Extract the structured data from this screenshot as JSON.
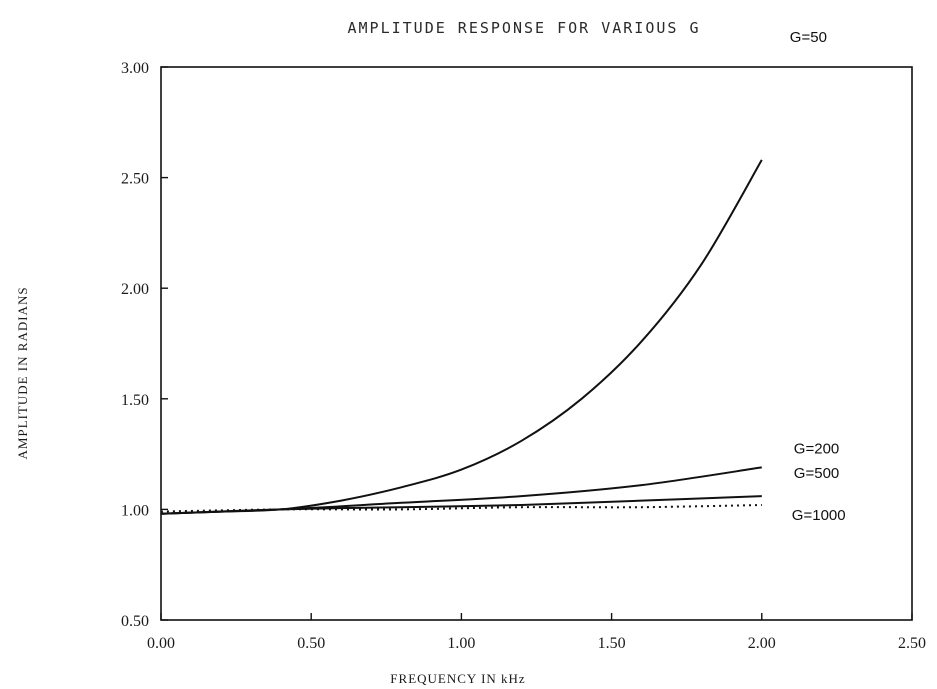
{
  "chart_data": {
    "type": "line",
    "title": "AMPLITUDE RESPONSE FOR VARIOUS G",
    "xlabel": "FREQUENCY IN kHz",
    "ylabel": "AMPLITUDE IN RADIANS",
    "xlim": [
      0.0,
      2.5
    ],
    "ylim": [
      0.5,
      3.0
    ],
    "xticks": [
      "0.00",
      "0.50",
      "1.00",
      "1.50",
      "2.00",
      "2.50"
    ],
    "yticks": [
      "0.50",
      "1.00",
      "1.50",
      "2.00",
      "2.50",
      "3.00"
    ],
    "grid": false,
    "series": [
      {
        "name": "G=50",
        "line_style": "solid",
        "x": [
          0.0,
          0.2,
          0.4,
          0.6,
          0.8,
          1.0,
          1.2,
          1.4,
          1.6,
          1.8,
          2.0
        ],
        "y": [
          0.98,
          0.99,
          1.0,
          1.04,
          1.1,
          1.18,
          1.31,
          1.5,
          1.76,
          2.11,
          2.58
        ]
      },
      {
        "name": "G=200",
        "line_style": "solid",
        "x": [
          0.0,
          0.4,
          0.8,
          1.2,
          1.6,
          2.0
        ],
        "y": [
          0.98,
          1.0,
          1.03,
          1.06,
          1.11,
          1.19
        ]
      },
      {
        "name": "G=500",
        "line_style": "solid",
        "x": [
          0.0,
          0.4,
          0.8,
          1.2,
          1.6,
          2.0
        ],
        "y": [
          0.98,
          1.0,
          1.01,
          1.02,
          1.04,
          1.06
        ]
      },
      {
        "name": "G=1000",
        "line_style": "dotted",
        "x": [
          0.0,
          0.4,
          0.8,
          1.2,
          1.6,
          2.0
        ],
        "y": [
          0.99,
          1.0,
          1.0,
          1.01,
          1.01,
          1.02
        ]
      }
    ]
  }
}
